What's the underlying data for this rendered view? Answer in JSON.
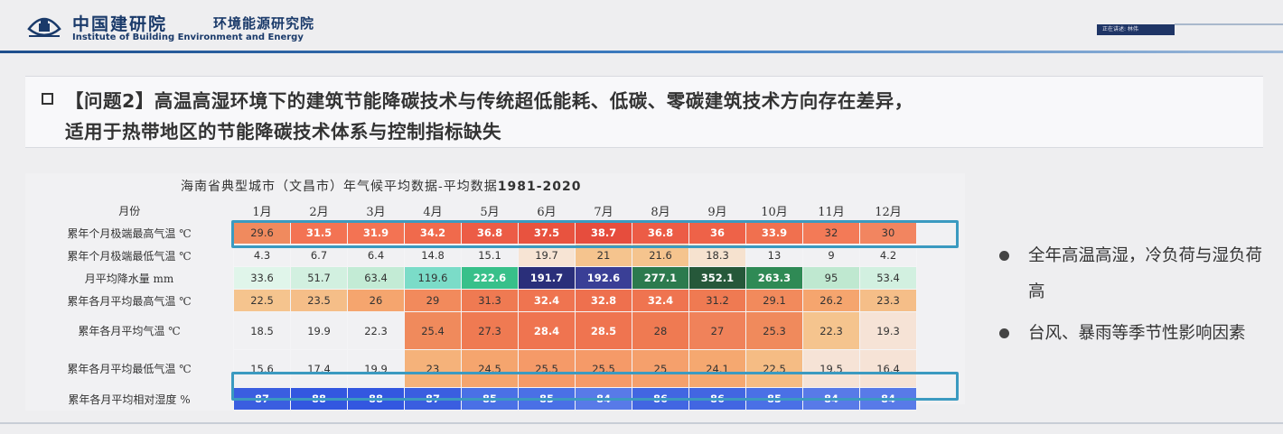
{
  "header": {
    "org_cn": "中国建研院",
    "institute_cn": "环境能源研究院",
    "org_en": "Institute of Building Environment and Energy",
    "tag_text": "正在讲述: 林伟"
  },
  "question": {
    "line1": "【问题2】高温高湿环境下的建筑节能降碳技术与传统超低能耗、低碳、零碳建筑技术方向存在差异，",
    "line2": "适用于热带地区的节能降碳技术体系与控制指标缺失"
  },
  "table": {
    "title_prefix": "海南省典型城市（文昌市）年气候平均数据-平均数据",
    "title_years": "1981-2020",
    "corner_label": "月份",
    "months": [
      "1月",
      "2月",
      "3月",
      "4月",
      "5月",
      "6月",
      "7月",
      "8月",
      "9月",
      "10月",
      "11月",
      "12月"
    ],
    "rows": [
      {
        "label": "累年个月极端最高气温 ℃",
        "values": [
          "29.6",
          "31.5",
          "31.9",
          "34.2",
          "36.8",
          "37.5",
          "38.7",
          "36.8",
          "36",
          "33.9",
          "32",
          "30"
        ],
        "colors": [
          "#f08a5e",
          "#f37353",
          "#f37353",
          "#f06a4c",
          "#ec5c46",
          "#e8533f",
          "#e64d3d",
          "#ec5c46",
          "#ee6248",
          "#f0704f",
          "#f37a57",
          "#f28560"
        ]
      },
      {
        "label": "累年个月极端最低气温 ℃",
        "values": [
          "4.3",
          "6.7",
          "6.4",
          "14.8",
          "15.1",
          "19.7",
          "21",
          "21.6",
          "18.3",
          "13",
          "9",
          "4.2"
        ],
        "colors": [
          "#f1f1f3",
          "#f1f1f3",
          "#f1f1f3",
          "#f1f1f3",
          "#f1f1f3",
          "#f7e4d4",
          "#f5c48e",
          "#f5c48e",
          "#f6e2cf",
          "#f1f1f3",
          "#f1f1f3",
          "#f1f1f3"
        ]
      },
      {
        "label": "月平均降水量 mm",
        "values": [
          "33.6",
          "51.7",
          "63.4",
          "119.6",
          "222.6",
          "191.7",
          "192.6",
          "277.1",
          "352.1",
          "263.3",
          "95",
          "53.4"
        ],
        "colors": [
          "#e0f5ea",
          "#d2f0e0",
          "#c3ebd5",
          "#7bdcc8",
          "#38c08a",
          "#2a2f7a",
          "#3a3f96",
          "#2c7a4e",
          "#26583a",
          "#2f8a55",
          "#bfe8d0",
          "#d2f0e0"
        ]
      },
      {
        "label": "累年各月平均最高气温 ℃",
        "values": [
          "22.5",
          "23.5",
          "26",
          "29",
          "31.3",
          "32.4",
          "32.8",
          "32.4",
          "31.2",
          "29.1",
          "26.2",
          "23.3"
        ],
        "colors": [
          "#f5c48e",
          "#f5be88",
          "#f5a56e",
          "#f28a5c",
          "#ef7a52",
          "#ef7450",
          "#ee704e",
          "#ef7450",
          "#ef7a52",
          "#f28a5c",
          "#f5a56e",
          "#f5be88"
        ]
      },
      {
        "label": "累年各月平均气温 ℃",
        "values": [
          "18.5",
          "19.9",
          "22.3",
          "25.4",
          "27.3",
          "28.4",
          "28.5",
          "28",
          "27",
          "25.3",
          "22.3",
          "19.3"
        ],
        "colors": [
          "#f1f1f3",
          "#f1f1f3",
          "#f1f1f3",
          "#f08a5c",
          "#ef7a52",
          "#ef7450",
          "#ef7450",
          "#ef7a52",
          "#f0825a",
          "#f08a5c",
          "#f5c48e",
          "#f6e3d6"
        ]
      },
      {
        "label": "累年各月平均最低气温 ℃",
        "values": [
          "15.6",
          "17.4",
          "19.9",
          "23",
          "24.5",
          "25.5",
          "25.5",
          "25",
          "24.1",
          "22.5",
          "19.5",
          "16.4"
        ],
        "colors": [
          "#f1f1f3",
          "#f1f1f3",
          "#f1f1f3",
          "#f5b27a",
          "#f5a56e",
          "#f59a68",
          "#f59a68",
          "#f5a06c",
          "#f5a870",
          "#f5bc84",
          "#f6e3d6",
          "#f6e3d6"
        ]
      },
      {
        "label": "累年各月平均相对湿度 %",
        "values": [
          "87",
          "88",
          "88",
          "87",
          "85",
          "85",
          "84",
          "86",
          "86",
          "85",
          "84",
          "84"
        ],
        "colors": [
          "#3a5ee0",
          "#3357e0",
          "#3357e0",
          "#3a5ee0",
          "#4a70e6",
          "#4a70e6",
          "#587ae8",
          "#4266e2",
          "#4266e2",
          "#4a70e6",
          "#587ae8",
          "#587ae8"
        ]
      }
    ]
  },
  "bullets": [
    {
      "text": "全年高温高湿，冷负荷与湿负荷高"
    },
    {
      "text": "台风、暴雨等季节性影响因素"
    }
  ]
}
